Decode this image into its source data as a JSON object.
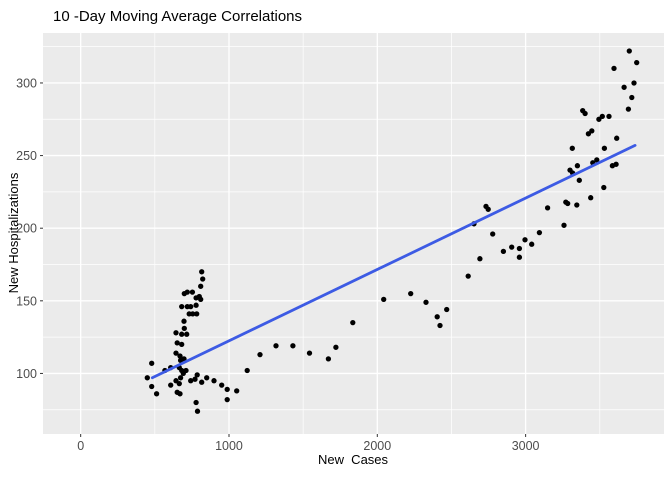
{
  "chart_data": {
    "type": "scatter",
    "title": "10 -Day Moving Average Correlations",
    "xlabel": "New  Cases",
    "ylabel": "New Hospitalizations",
    "xlim": [
      -254,
      3933
    ],
    "ylim": [
      58.3,
      334.4
    ],
    "x_ticks": [
      0,
      1000,
      2000,
      3000
    ],
    "x_minor_ticks": [
      500,
      1500,
      2500,
      3500
    ],
    "y_ticks": [
      100,
      150,
      200,
      250,
      300
    ],
    "y_minor_ticks": [
      75,
      125,
      175,
      225,
      275,
      325
    ],
    "grid": true,
    "legend_position": "none",
    "colors": {
      "panel_bg": "#EBEBEB",
      "grid": "#FFFFFF",
      "point": "#000000",
      "trend_line": "#3D5BE4",
      "axis_text": "#4D4D4D",
      "tick_mark": "#333333",
      "title_text": "#000000",
      "figure_bg": "#FFFFFF"
    },
    "trend_line": {
      "type": "linear",
      "from": [
        483,
        97
      ],
      "to": [
        3738,
        257
      ]
    },
    "points": [
      [
        449,
        97
      ],
      [
        479,
        107
      ],
      [
        479,
        91
      ],
      [
        512,
        86
      ],
      [
        568,
        102
      ],
      [
        607,
        104
      ],
      [
        607,
        92
      ],
      [
        643,
        128
      ],
      [
        643,
        114
      ],
      [
        643,
        95
      ],
      [
        651,
        121
      ],
      [
        651,
        87
      ],
      [
        665,
        104
      ],
      [
        665,
        93
      ],
      [
        670,
        112
      ],
      [
        670,
        86
      ],
      [
        674,
        109
      ],
      [
        674,
        97
      ],
      [
        681,
        146
      ],
      [
        681,
        127
      ],
      [
        681,
        120
      ],
      [
        681,
        102
      ],
      [
        692,
        100
      ],
      [
        697,
        136
      ],
      [
        697,
        110
      ],
      [
        699,
        155
      ],
      [
        699,
        131
      ],
      [
        710,
        102
      ],
      [
        715,
        127
      ],
      [
        719,
        156
      ],
      [
        719,
        146
      ],
      [
        732,
        141
      ],
      [
        742,
        146
      ],
      [
        742,
        95
      ],
      [
        753,
        156
      ],
      [
        755,
        141
      ],
      [
        771,
        96
      ],
      [
        778,
        152
      ],
      [
        778,
        147
      ],
      [
        778,
        80
      ],
      [
        782,
        141
      ],
      [
        786,
        99
      ],
      [
        788,
        74
      ],
      [
        800,
        153
      ],
      [
        809,
        160
      ],
      [
        809,
        151
      ],
      [
        816,
        170
      ],
      [
        816,
        94
      ],
      [
        823,
        165
      ],
      [
        850,
        97
      ],
      [
        899,
        95
      ],
      [
        951,
        92
      ],
      [
        988,
        89
      ],
      [
        988,
        82
      ],
      [
        1052,
        88
      ],
      [
        1123,
        102
      ],
      [
        1209,
        113
      ],
      [
        1317,
        119
      ],
      [
        1431,
        119
      ],
      [
        1543,
        114
      ],
      [
        1670,
        110
      ],
      [
        1721,
        118
      ],
      [
        1835,
        135
      ],
      [
        2043,
        151
      ],
      [
        2225,
        155
      ],
      [
        2328,
        149
      ],
      [
        2404,
        139
      ],
      [
        2423,
        133
      ],
      [
        2468,
        144
      ],
      [
        2613,
        167
      ],
      [
        2652,
        203
      ],
      [
        2692,
        179
      ],
      [
        2733,
        215
      ],
      [
        2748,
        213
      ],
      [
        2778,
        196
      ],
      [
        2850,
        184
      ],
      [
        2906,
        187
      ],
      [
        2958,
        186
      ],
      [
        2958,
        180
      ],
      [
        2996,
        192
      ],
      [
        3041,
        189
      ],
      [
        3093,
        197
      ],
      [
        3148,
        214
      ],
      [
        3259,
        202
      ],
      [
        3271,
        218
      ],
      [
        3284,
        217
      ],
      [
        3299,
        240
      ],
      [
        3315,
        255
      ],
      [
        3317,
        238
      ],
      [
        3345,
        216
      ],
      [
        3349,
        243
      ],
      [
        3362,
        233
      ],
      [
        3385,
        281
      ],
      [
        3401,
        279
      ],
      [
        3423,
        265
      ],
      [
        3439,
        221
      ],
      [
        3446,
        267
      ],
      [
        3453,
        245
      ],
      [
        3480,
        247
      ],
      [
        3494,
        275
      ],
      [
        3517,
        277
      ],
      [
        3527,
        228
      ],
      [
        3531,
        255
      ],
      [
        3562,
        277
      ],
      [
        3585,
        243
      ],
      [
        3596,
        310
      ],
      [
        3610,
        244
      ],
      [
        3614,
        262
      ],
      [
        3664,
        297
      ],
      [
        3693,
        282
      ],
      [
        3699,
        322
      ],
      [
        3716,
        290
      ],
      [
        3731,
        300
      ],
      [
        3749,
        314
      ]
    ],
    "point_radius": 2.65,
    "trend_line_width": 2.8
  }
}
